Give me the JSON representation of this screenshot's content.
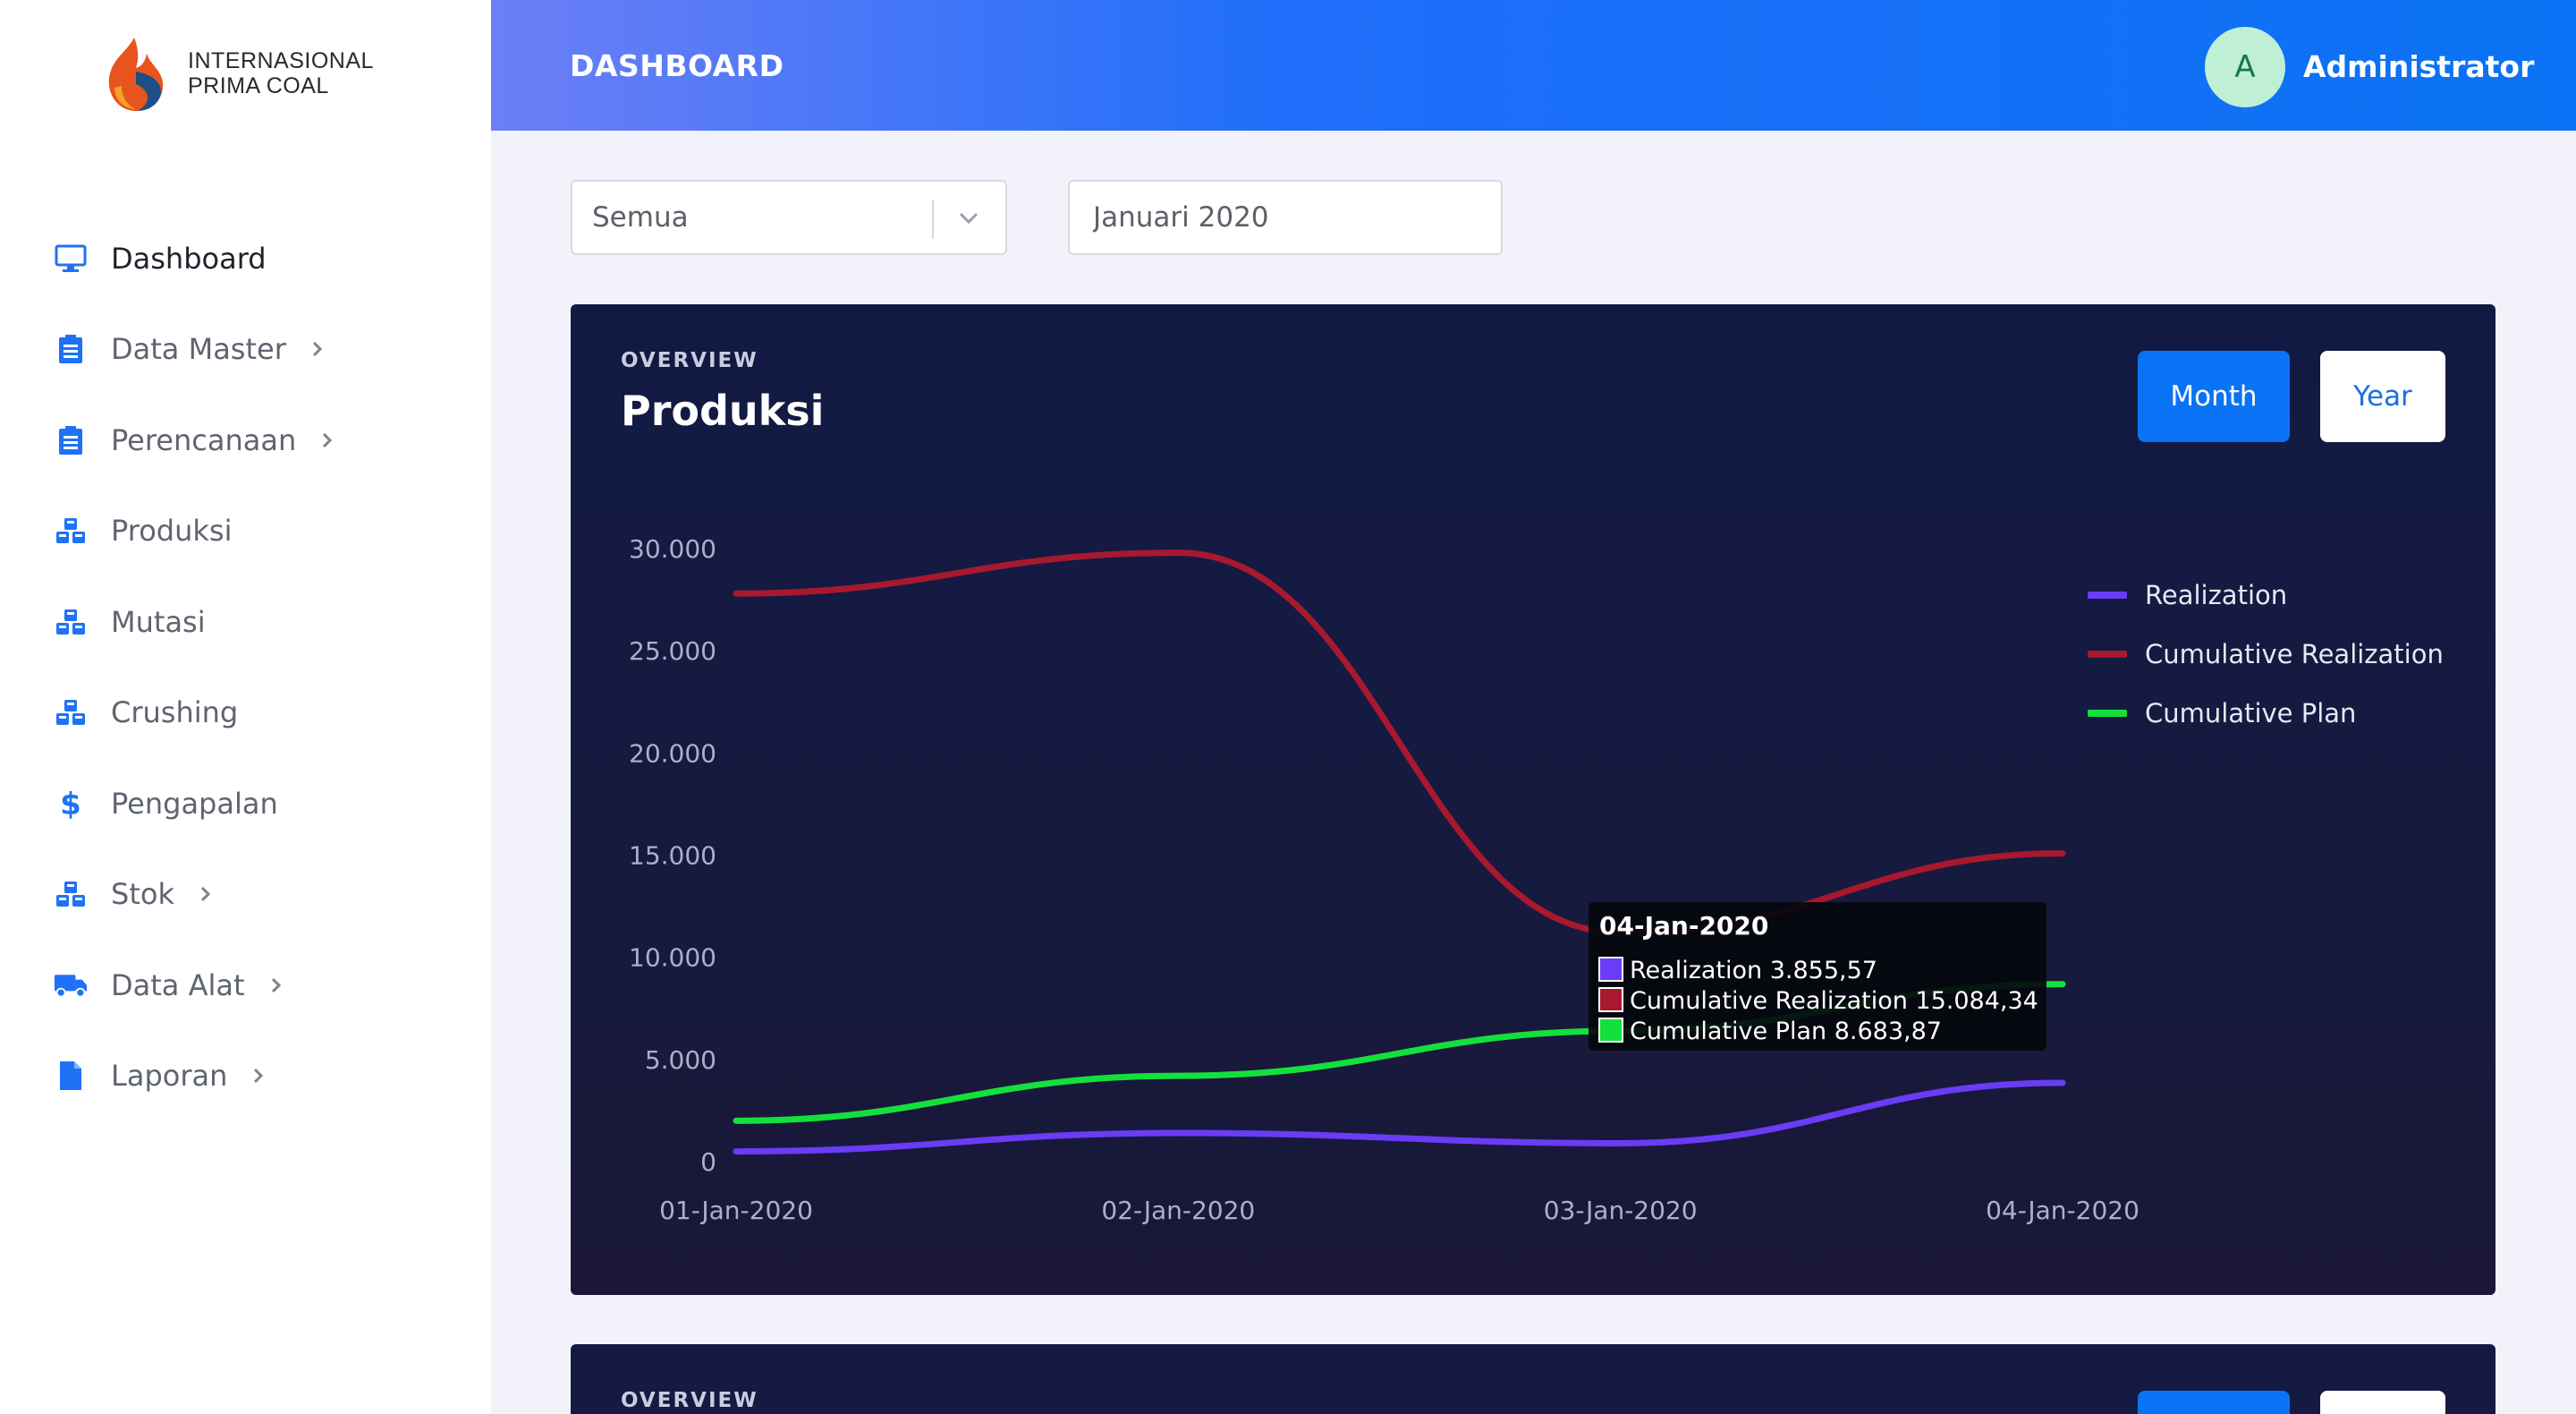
{
  "brand": {
    "line1": "INTERNASIONAL",
    "line2": "PRIMA COAL"
  },
  "header": {
    "title": "DASHBOARD",
    "user_initial": "A",
    "user_name": "Administrator"
  },
  "sidebar": {
    "items": [
      {
        "label": "Dashboard",
        "icon": "monitor-icon",
        "has_children": false,
        "active": true
      },
      {
        "label": "Data Master",
        "icon": "clipboard-icon",
        "has_children": true
      },
      {
        "label": "Perencanaan",
        "icon": "clipboard-icon",
        "has_children": true
      },
      {
        "label": "Produksi",
        "icon": "cubes-icon",
        "has_children": false
      },
      {
        "label": "Mutasi",
        "icon": "cubes-icon",
        "has_children": false
      },
      {
        "label": "Crushing",
        "icon": "cubes-icon",
        "has_children": false
      },
      {
        "label": "Pengapalan",
        "icon": "dollar-icon",
        "has_children": false
      },
      {
        "label": "Stok",
        "icon": "cubes-icon",
        "has_children": true
      },
      {
        "label": "Data Alat",
        "icon": "truck-icon",
        "has_children": true
      },
      {
        "label": "Laporan",
        "icon": "file-icon",
        "has_children": true
      }
    ]
  },
  "filters": {
    "site_value": "Semua",
    "period_value": "Januari 2020"
  },
  "production_card": {
    "overline": "OVERVIEW",
    "title": "Produksi",
    "month_label": "Month",
    "year_label": "Year"
  },
  "second_card": {
    "overline": "OVERVIEW"
  },
  "colors": {
    "accent": "#0a73f5",
    "realization": "#6a3cf5",
    "cumulative_realization": "#a8182f",
    "cumulative_plan": "#14e03c"
  },
  "chart_data": {
    "type": "line",
    "title": "",
    "xlabel": "",
    "ylabel": "",
    "x": [
      "01-Jan-2020",
      "02-Jan-2020",
      "03-Jan-2020",
      "04-Jan-2020"
    ],
    "ylim": [
      0,
      30000
    ],
    "yticks": [
      "0",
      "5.000",
      "10.000",
      "15.000",
      "20.000",
      "25.000",
      "30.000"
    ],
    "legend_position": "top-right",
    "series": [
      {
        "name": "Realization",
        "color": "#6a3cf5",
        "values": [
          500,
          1400,
          900,
          3855.57
        ]
      },
      {
        "name": "Cumulative Realization",
        "color": "#a8182f",
        "values": [
          27800,
          29800,
          11200,
          15084.34
        ]
      },
      {
        "name": "Cumulative Plan",
        "color": "#14e03c",
        "values": [
          2000,
          4200,
          6400,
          8683.87
        ]
      }
    ],
    "tooltip": {
      "title": "04-Jan-2020",
      "lines": [
        "Realization 3.855,57",
        "Cumulative Realization 15.084,34",
        "Cumulative Plan 8.683,87"
      ]
    }
  }
}
